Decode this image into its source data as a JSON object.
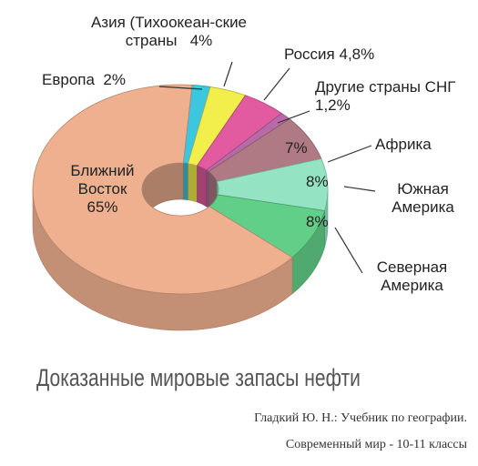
{
  "chart_data": {
    "type": "pie",
    "title": "Доказанные мировые запасы нефти",
    "source_lines": [
      "Гладкий Ю. Н.: Учебник по географии.",
      "Современный мир - 10-11 классы"
    ],
    "categories": [
      "Европа",
      "Азия (Тихоокеан-ские страны",
      "Россия",
      "Другие страны СНГ",
      "Африка",
      "Южная Америка",
      "Северная Америка",
      "Ближний Восток"
    ],
    "values": [
      2,
      4,
      4.8,
      1.2,
      7,
      8,
      8,
      65
    ],
    "value_labels": [
      "2%",
      "4%",
      "4,8%",
      "1,2%",
      "7%",
      "8%",
      "8%",
      "65%"
    ],
    "colors": [
      "#3cc6e0",
      "#f2ee4c",
      "#e25aa0",
      "#b86aa8",
      "#b07a84",
      "#94e4c4",
      "#62cf88",
      "#eeb08f"
    ]
  }
}
